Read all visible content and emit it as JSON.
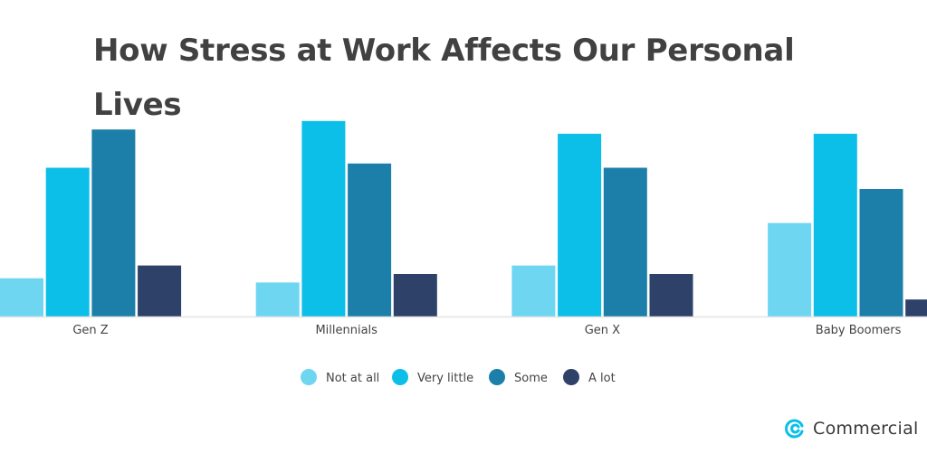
{
  "chart_data": {
    "type": "bar",
    "title": "How Stress at Work Affects Our Personal Lives",
    "xlabel": "",
    "ylabel": "",
    "ylim": [
      0,
      50
    ],
    "grid": false,
    "legend_position": "bottom",
    "categories": [
      "Gen Z",
      "Millennials",
      "Gen X",
      "Baby Boomers"
    ],
    "series": [
      {
        "name": "Not at all",
        "color": "#6fd6f2",
        "values": [
          9,
          8,
          12,
          22
        ]
      },
      {
        "name": "Very little",
        "color": "#0bbfe9",
        "values": [
          35,
          46,
          43,
          43
        ]
      },
      {
        "name": "Some",
        "color": "#1b7fa9",
        "values": [
          44,
          36,
          35,
          30
        ]
      },
      {
        "name": "A lot",
        "color": "#2e4168",
        "values": [
          12,
          10,
          10,
          4
        ]
      }
    ]
  },
  "logo": {
    "text": "Commercial",
    "color": "#0bbfe9"
  }
}
